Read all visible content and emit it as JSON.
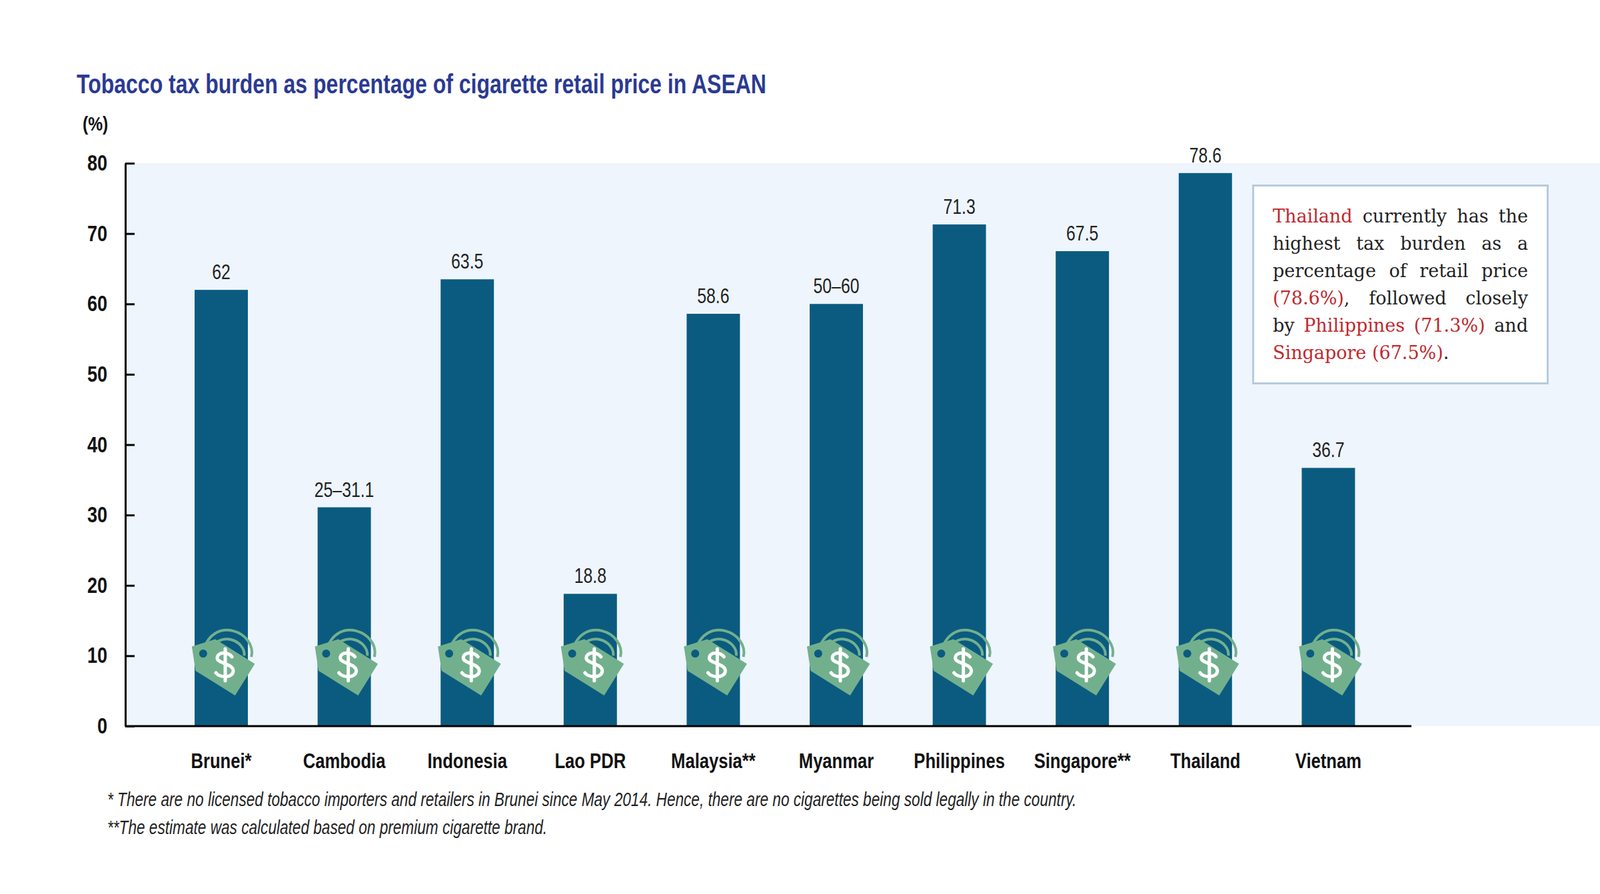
{
  "chart_data": {
    "type": "bar",
    "title": "Tobacco tax burden as percentage of cigarette retail price in ASEAN",
    "y_label": "(%)",
    "categories": [
      "Brunei*",
      "Cambodia",
      "Indonesia",
      "Lao PDR",
      "Malaysia**",
      "Myanmar",
      "Philippines",
      "Singapore**",
      "Thailand",
      "Vietnam"
    ],
    "values": [
      62,
      31.1,
      63.5,
      18.8,
      58.6,
      60,
      71.3,
      67.5,
      78.6,
      36.7
    ],
    "value_labels": [
      "62",
      "25–31.1",
      "63.5",
      "18.8",
      "58.6",
      "50–60",
      "71.3",
      "67.5",
      "78.6",
      "36.7"
    ],
    "color": "#0b5b80",
    "ylim": [
      0,
      80
    ],
    "yticks": [
      0,
      10,
      20,
      30,
      40,
      50,
      60,
      70,
      80
    ],
    "grid": false,
    "data_labels": true,
    "annotation": {
      "text": "Thailand currently has the highest tax burden as a percentage of retail price (78.6%), followed closely by Philippines (71.3%) and Singapore (67.5%).",
      "highlights": [
        "Thailand",
        "(78.6%)",
        "Philippines",
        "(71.3%)",
        "Singapore",
        "(67.5%)"
      ]
    },
    "footnotes": [
      "* There are no licensed tobacco importers and retailers in Brunei since May 2014. Hence, there are no cigarettes being sold legally in the country.",
      "**The estimate was calculated based on premium cigarette brand."
    ]
  }
}
